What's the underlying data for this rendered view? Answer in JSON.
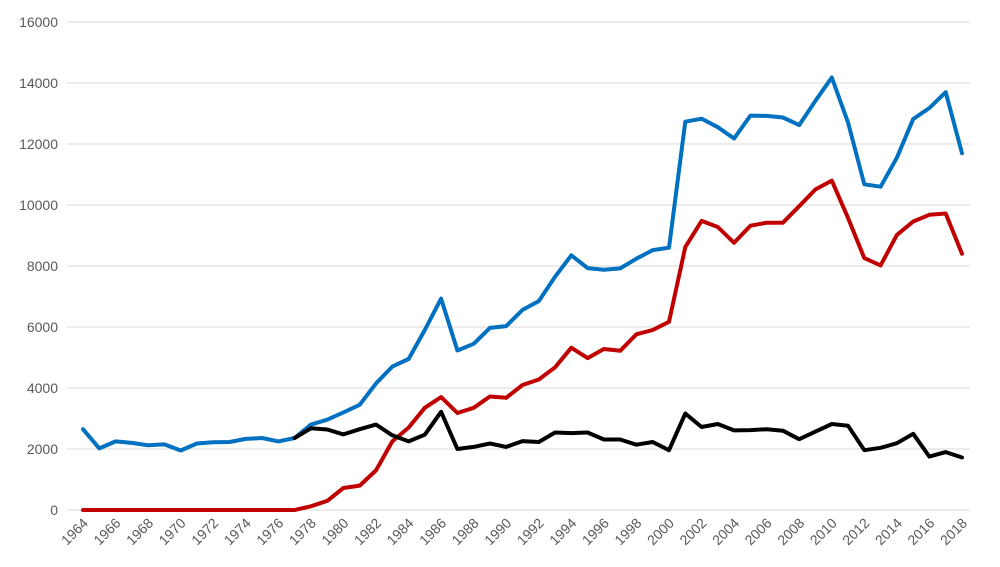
{
  "chart_data": {
    "type": "line",
    "title": "",
    "xlabel": "",
    "ylabel": "",
    "x": [
      1964,
      1965,
      1966,
      1967,
      1968,
      1969,
      1970,
      1971,
      1972,
      1973,
      1974,
      1975,
      1976,
      1977,
      1978,
      1979,
      1980,
      1981,
      1982,
      1983,
      1984,
      1985,
      1986,
      1987,
      1988,
      1989,
      1990,
      1991,
      1992,
      1993,
      1994,
      1995,
      1996,
      1997,
      1998,
      1999,
      2000,
      2001,
      2002,
      2003,
      2004,
      2005,
      2006,
      2007,
      2008,
      2009,
      2010,
      2011,
      2012,
      2013,
      2014,
      2015,
      2016,
      2017,
      2018
    ],
    "x_tick_labels": [
      "1964",
      "1966",
      "1968",
      "1970",
      "1972",
      "1974",
      "1976",
      "1978",
      "1980",
      "1982",
      "1984",
      "1986",
      "1988",
      "1990",
      "1992",
      "1994",
      "1996",
      "1998",
      "2000",
      "2002",
      "2004",
      "2006",
      "2008",
      "2010",
      "2012",
      "2014",
      "2016",
      "2018"
    ],
    "ylim": [
      0,
      16000
    ],
    "y_ticks": [
      0,
      2000,
      4000,
      6000,
      8000,
      10000,
      12000,
      14000,
      16000
    ],
    "grid": "horizontal",
    "legend": "none",
    "series": [
      {
        "color": "#0070c0",
        "values": [
          2650,
          2020,
          2250,
          2200,
          2120,
          2150,
          1950,
          2180,
          2220,
          2230,
          2330,
          2360,
          2250,
          2360,
          2800,
          2960,
          3200,
          3450,
          4150,
          4700,
          4950,
          5900,
          6930,
          5230,
          5450,
          5970,
          6030,
          6560,
          6850,
          7650,
          8350,
          7930,
          7880,
          7920,
          8240,
          8520,
          8600,
          12730,
          12830,
          12550,
          12180,
          12930,
          12920,
          12870,
          12620,
          13420,
          14180,
          12700,
          10680,
          10600,
          11550,
          12820,
          13180,
          13700,
          11700
        ]
      },
      {
        "color": "#c00000",
        "values": [
          0,
          0,
          0,
          0,
          0,
          0,
          0,
          0,
          0,
          0,
          0,
          0,
          0,
          0,
          120,
          300,
          720,
          800,
          1300,
          2250,
          2700,
          3350,
          3700,
          3180,
          3350,
          3720,
          3680,
          4100,
          4280,
          4680,
          5320,
          4980,
          5280,
          5220,
          5760,
          5900,
          6170,
          8620,
          9480,
          9280,
          8760,
          9320,
          9420,
          9420,
          9960,
          10510,
          10800,
          9570,
          8260,
          8020,
          9020,
          9460,
          9680,
          9720,
          8400
        ]
      },
      {
        "color": "#000000",
        "values": [
          null,
          null,
          null,
          null,
          null,
          null,
          null,
          null,
          null,
          null,
          null,
          null,
          null,
          2360,
          2680,
          2640,
          2480,
          2650,
          2800,
          2450,
          2250,
          2470,
          3220,
          2000,
          2070,
          2180,
          2070,
          2260,
          2230,
          2540,
          2520,
          2540,
          2310,
          2310,
          2140,
          2230,
          1960,
          3160,
          2720,
          2820,
          2610,
          2620,
          2650,
          2600,
          2320,
          2570,
          2820,
          2760,
          1960,
          2040,
          2190,
          2500,
          1750,
          1900,
          1720
        ]
      }
    ]
  }
}
